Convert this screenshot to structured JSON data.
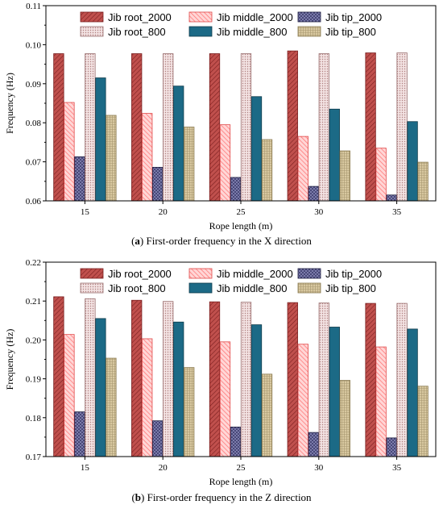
{
  "legend_entries": [
    "Jib root_2000",
    "Jib middle_2000",
    "Jib tip_2000",
    "Jib root_800",
    "Jib middle_800",
    "Jib tip_800"
  ],
  "series_colors": [
    "#c0504d",
    "#ff9f9f",
    "#3a3a6a",
    "#e8c8c8",
    "#1c6a86",
    "#d8c8a0"
  ],
  "chart_data": [
    {
      "type": "bar",
      "xlabel": "Rope length (m)",
      "ylabel": "Frequency (Hz)",
      "ylim": [
        0.06,
        0.11
      ],
      "yticks": [
        "0.06",
        "0.07",
        "0.08",
        "0.09",
        "0.10",
        "0.11"
      ],
      "categories": [
        "15",
        "20",
        "25",
        "30",
        "35"
      ],
      "legend_position": "top",
      "grid": false,
      "caption_label": "a",
      "caption_text": "First-order frequency in the X direction",
      "series": [
        {
          "name": "Jib root_2000",
          "values": [
            0.0977,
            0.0977,
            0.0977,
            0.0984,
            0.0979
          ]
        },
        {
          "name": "Jib middle_2000",
          "values": [
            0.0852,
            0.0824,
            0.0795,
            0.0765,
            0.0735
          ]
        },
        {
          "name": "Jib tip_2000",
          "values": [
            0.0713,
            0.0686,
            0.066,
            0.0637,
            0.0615
          ]
        },
        {
          "name": "Jib root_800",
          "values": [
            0.0977,
            0.0977,
            0.0977,
            0.0977,
            0.0979
          ]
        },
        {
          "name": "Jib middle_800",
          "values": [
            0.0915,
            0.0894,
            0.0867,
            0.0835,
            0.0803
          ]
        },
        {
          "name": "Jib tip_800",
          "values": [
            0.0819,
            0.0789,
            0.0757,
            0.0728,
            0.0699
          ]
        }
      ]
    },
    {
      "type": "bar",
      "xlabel": "Rope length (m)",
      "ylabel": "Frequency (Hz)",
      "ylim": [
        0.17,
        0.22
      ],
      "yticks": [
        "0.17",
        "0.18",
        "0.19",
        "0.20",
        "0.21",
        "0.22"
      ],
      "categories": [
        "15",
        "20",
        "25",
        "30",
        "35"
      ],
      "legend_position": "top",
      "grid": false,
      "caption_label": "b",
      "caption_text": "First-order frequency in the Z direction",
      "series": [
        {
          "name": "Jib root_2000",
          "values": [
            0.2111,
            0.2102,
            0.2098,
            0.2096,
            0.2094
          ]
        },
        {
          "name": "Jib middle_2000",
          "values": [
            0.2014,
            0.2003,
            0.1995,
            0.1989,
            0.1982
          ]
        },
        {
          "name": "Jib tip_2000",
          "values": [
            0.1815,
            0.1792,
            0.1776,
            0.1762,
            0.1748
          ]
        },
        {
          "name": "Jib root_800",
          "values": [
            0.2106,
            0.2099,
            0.2097,
            0.2095,
            0.2094
          ]
        },
        {
          "name": "Jib middle_800",
          "values": [
            0.2055,
            0.2046,
            0.2039,
            0.2033,
            0.2028
          ]
        },
        {
          "name": "Jib tip_800",
          "values": [
            0.1953,
            0.1929,
            0.1912,
            0.1896,
            0.1881
          ]
        }
      ]
    }
  ]
}
